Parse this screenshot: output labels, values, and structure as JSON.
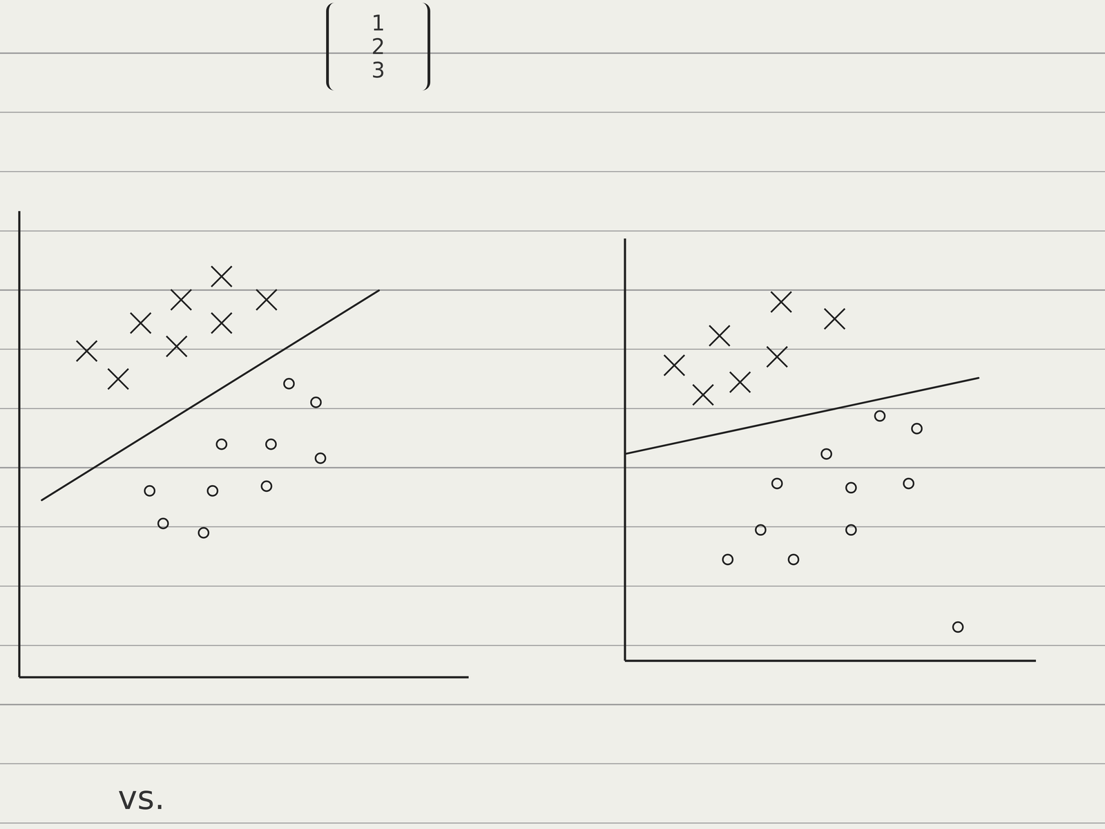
{
  "chart_data": [
    {
      "type": "scatter",
      "tick_labels": false,
      "grid": false,
      "xlim": [
        0,
        10
      ],
      "ylim": [
        0,
        10
      ],
      "xticks": [],
      "yticks": [],
      "color": "#222222",
      "series": [
        {
          "marker": "x",
          "x": [
            1.5,
            2.2,
            2.7,
            3.6,
            4.5,
            5.5,
            4.5,
            3.5
          ],
          "values": [
            7.0,
            6.4,
            7.6,
            8.1,
            8.6,
            8.1,
            7.6,
            7.1
          ]
        },
        {
          "marker": "o",
          "x": [
            6.0,
            6.6,
            4.5,
            5.6,
            6.7,
            2.9,
            4.3,
            5.5,
            3.2,
            4.1
          ],
          "values": [
            6.3,
            5.9,
            5.0,
            5.0,
            4.7,
            4.0,
            4.0,
            4.1,
            3.3,
            3.1
          ]
        },
        {
          "type": "line",
          "x": [
            0.5,
            8.0
          ],
          "values": [
            3.8,
            8.3
          ]
        }
      ]
    },
    {
      "type": "scatter",
      "tick_labels": false,
      "grid": false,
      "xlim": [
        0,
        10
      ],
      "ylim": [
        0,
        10
      ],
      "xticks": [],
      "yticks": [],
      "color": "#222222",
      "series": [
        {
          "marker": "x",
          "x": [
            1.2,
            2.3,
            3.8,
            5.1,
            3.7,
            2.8,
            1.9
          ],
          "values": [
            7.0,
            7.7,
            8.5,
            8.1,
            7.2,
            6.6,
            6.3
          ]
        },
        {
          "marker": "o",
          "x": [
            6.2,
            7.1,
            4.9,
            3.7,
            5.5,
            6.9,
            3.3,
            5.5,
            2.5,
            4.1,
            8.1
          ],
          "values": [
            5.8,
            5.5,
            4.9,
            4.2,
            4.1,
            4.2,
            3.1,
            3.1,
            2.4,
            2.4,
            0.8
          ]
        },
        {
          "type": "line",
          "x": [
            0,
            8.6
          ],
          "values": [
            4.9,
            6.7
          ]
        }
      ]
    }
  ],
  "page": {
    "vector": [
      1,
      2,
      3
    ],
    "caption": "vs."
  }
}
